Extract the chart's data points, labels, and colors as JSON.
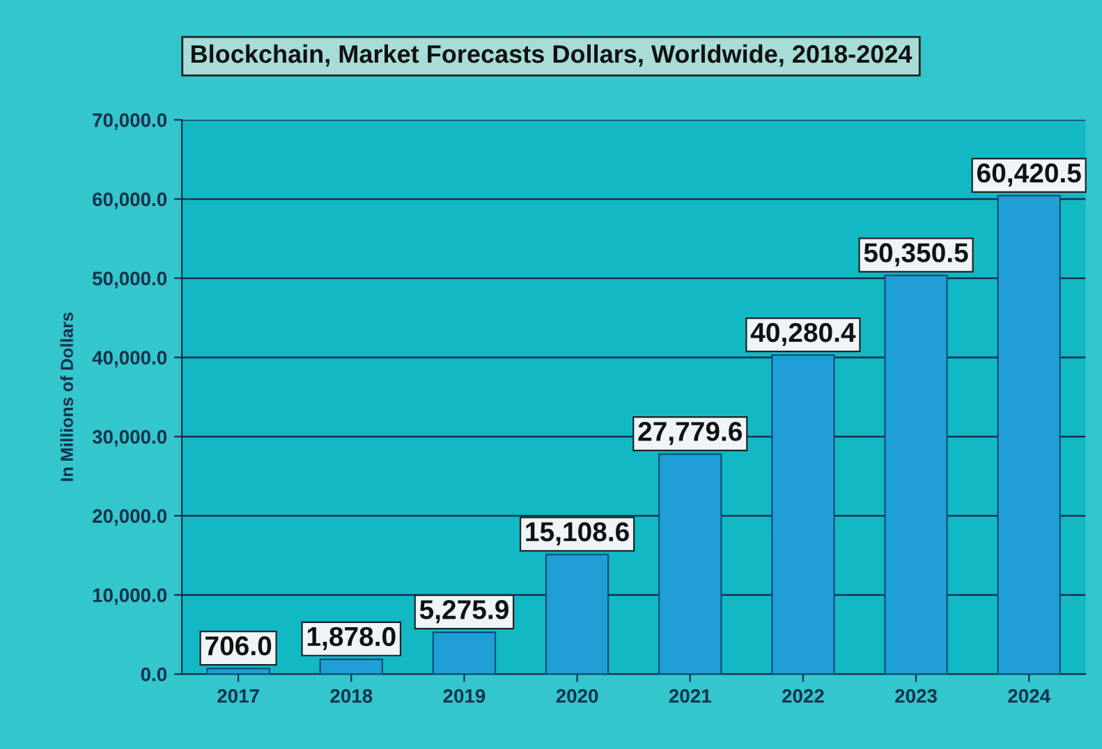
{
  "chart_data": {
    "type": "bar",
    "title": "Blockchain, Market Forecasts Dollars, Worldwide, 2018-2024",
    "ylabel": "In Millions of Dollars",
    "categories": [
      "2017",
      "2018",
      "2019",
      "2020",
      "2021",
      "2022",
      "2023",
      "2024"
    ],
    "values": [
      706.0,
      1878.0,
      5275.9,
      15108.6,
      27779.6,
      40280.4,
      50350.5,
      60420.5
    ],
    "color": "#1f9fd6",
    "value_labels": [
      "706.0",
      "1,878.0",
      "5,275.9",
      "15,108.6",
      "27,779.6",
      "40,280.4",
      "50,350.5",
      "60,420.5"
    ],
    "ylim": [
      0,
      70000
    ],
    "yticks": [
      {
        "value": 0,
        "label": "0.0"
      },
      {
        "value": 10000,
        "label": "10,000.0"
      },
      {
        "value": 20000,
        "label": "20,000.0"
      },
      {
        "value": 30000,
        "label": "30,000.0"
      },
      {
        "value": 40000,
        "label": "40,000.0"
      },
      {
        "value": 50000,
        "label": "50,000.0"
      },
      {
        "value": 60000,
        "label": "60,000.0"
      },
      {
        "value": 70000,
        "label": "70,000.0"
      }
    ],
    "grid": "y"
  }
}
